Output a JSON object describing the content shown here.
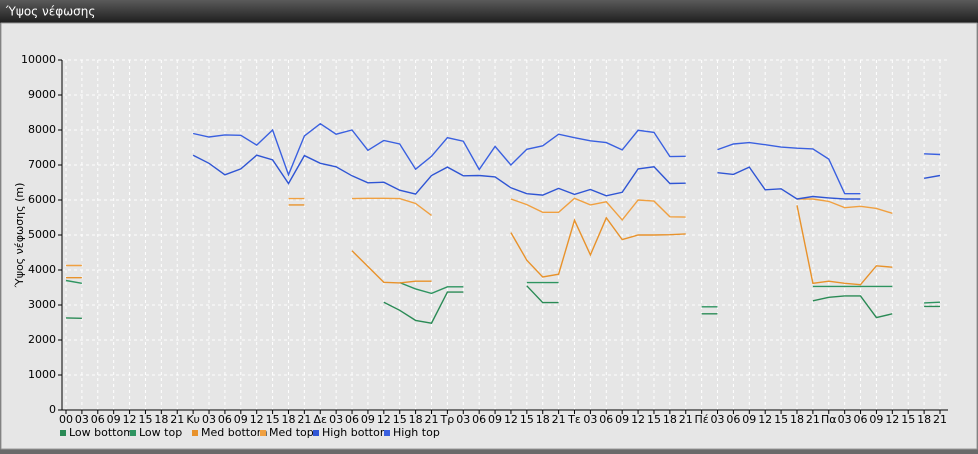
{
  "chart_data": {
    "type": "line",
    "title": "Ύψος νέφωσης",
    "y_label": "Ύψος νέφωσης (m)",
    "categories": [
      "00",
      "03",
      "06",
      "09",
      "12",
      "15",
      "18",
      "21",
      "Κυ",
      "03",
      "06",
      "09",
      "12",
      "15",
      "18",
      "21",
      "Δε",
      "03",
      "06",
      "09",
      "12",
      "15",
      "18",
      "21",
      "Τρ",
      "03",
      "06",
      "09",
      "12",
      "15",
      "18",
      "21",
      "Τε",
      "03",
      "06",
      "09",
      "12",
      "15",
      "18",
      "21",
      "Πέ",
      "03",
      "06",
      "09",
      "12",
      "15",
      "18",
      "21",
      "Πα",
      "03",
      "06",
      "09",
      "12",
      "15",
      "18",
      "21"
    ],
    "ylim": [
      0,
      10000
    ],
    "yticks": [
      0,
      1000,
      2000,
      3000,
      4000,
      5000,
      6000,
      7000,
      8000,
      9000,
      10000
    ],
    "grid": true,
    "legend": "bottom-left",
    "series": [
      {
        "name": "Low bottom",
        "color": "#2a8a55",
        "values": [
          2630,
          2620,
          null,
          null,
          null,
          null,
          null,
          null,
          null,
          null,
          null,
          null,
          null,
          null,
          null,
          null,
          null,
          null,
          null,
          null,
          3080,
          2850,
          2560,
          2480,
          3370,
          3370,
          null,
          null,
          null,
          3550,
          3070,
          3070,
          null,
          null,
          null,
          null,
          null,
          null,
          null,
          null,
          2750,
          2750,
          null,
          null,
          null,
          null,
          null,
          3120,
          3220,
          3260,
          3260,
          2640,
          2750,
          null,
          2960,
          2960
        ]
      },
      {
        "name": "Low top",
        "color": "#2e9460",
        "values": [
          3700,
          3620,
          null,
          null,
          null,
          null,
          null,
          null,
          null,
          null,
          null,
          null,
          null,
          null,
          null,
          null,
          null,
          null,
          null,
          null,
          null,
          3640,
          3460,
          3330,
          3520,
          3520,
          null,
          null,
          null,
          3640,
          3640,
          3640,
          null,
          null,
          null,
          null,
          null,
          null,
          null,
          null,
          2950,
          2950,
          null,
          null,
          null,
          null,
          null,
          3530,
          3530,
          3530,
          3530,
          3530,
          3530,
          null,
          3060,
          3080
        ]
      },
      {
        "name": "Med bottom",
        "color": "#e8922b",
        "values": [
          3780,
          3780,
          null,
          null,
          null,
          null,
          null,
          null,
          null,
          null,
          null,
          null,
          null,
          null,
          5860,
          5860,
          null,
          null,
          4550,
          4100,
          3650,
          3630,
          3680,
          3680,
          null,
          null,
          null,
          null,
          5070,
          4280,
          3800,
          3880,
          5420,
          4430,
          5490,
          4870,
          5000,
          5000,
          5010,
          5030,
          null,
          null,
          null,
          null,
          null,
          null,
          5850,
          3620,
          3680,
          3620,
          3580,
          4120,
          4080,
          null,
          null,
          null
        ]
      },
      {
        "name": "Med top",
        "color": "#f0a040",
        "values": [
          4130,
          4130,
          null,
          null,
          null,
          null,
          null,
          null,
          null,
          null,
          null,
          null,
          null,
          null,
          6040,
          6040,
          null,
          null,
          6040,
          6050,
          6050,
          6040,
          5900,
          5560,
          null,
          null,
          null,
          null,
          6030,
          5870,
          5650,
          5650,
          6050,
          5860,
          5950,
          5430,
          6000,
          5970,
          5520,
          5510,
          null,
          null,
          null,
          null,
          null,
          null,
          6030,
          6030,
          5960,
          5780,
          5820,
          5760,
          5620,
          null,
          null,
          null
        ]
      },
      {
        "name": "High bottom",
        "color": "#2f55d4",
        "values": [
          null,
          null,
          null,
          null,
          null,
          null,
          null,
          null,
          7280,
          7050,
          6720,
          6890,
          7280,
          7150,
          6470,
          7270,
          7050,
          6950,
          6690,
          6490,
          6510,
          6280,
          6170,
          6700,
          6940,
          6690,
          6700,
          6660,
          6350,
          6180,
          6140,
          6330,
          6160,
          6300,
          6120,
          6220,
          6890,
          6950,
          6470,
          6480,
          null,
          6780,
          6730,
          6940,
          6290,
          6320,
          6030,
          6100,
          6060,
          6030,
          6030,
          null,
          null,
          null,
          6620,
          6700
        ]
      },
      {
        "name": "High top",
        "color": "#3a60e0",
        "values": [
          null,
          null,
          null,
          null,
          null,
          null,
          null,
          null,
          7900,
          7800,
          7860,
          7850,
          7570,
          8000,
          6720,
          7830,
          8180,
          7880,
          8000,
          7420,
          7700,
          7600,
          6880,
          7250,
          7780,
          7680,
          6870,
          7530,
          7000,
          7450,
          7550,
          7880,
          7780,
          7690,
          7640,
          7430,
          7990,
          7930,
          7240,
          7250,
          null,
          7440,
          7600,
          7640,
          7580,
          7510,
          7480,
          7460,
          7170,
          6180,
          6180,
          null,
          null,
          null,
          7320,
          7300
        ]
      }
    ]
  }
}
